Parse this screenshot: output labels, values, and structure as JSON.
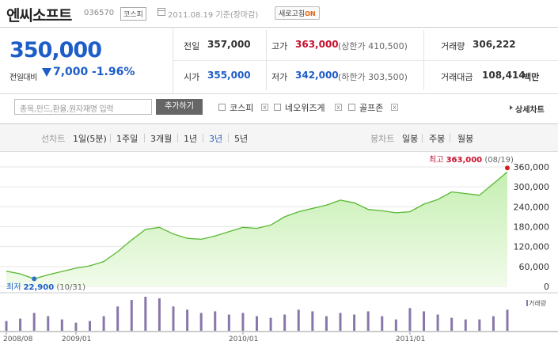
{
  "header": {
    "stock_name": "엔씨소프트",
    "stock_code": "036570",
    "market_badge": "코스피",
    "date_text": "2011.08.19 기준(장마감)",
    "refresh_label": "새로고침",
    "refresh_state": "ON"
  },
  "summary": {
    "price": "350,000",
    "change_label": "전일대비",
    "change_value": "7,000",
    "change_pct": "-1.96%",
    "prev_close_label": "전일",
    "prev_close": "357,000",
    "high_label": "고가",
    "high": "363,000",
    "upper_limit": "(상한가 410,500)",
    "volume_label": "거래량",
    "volume": "306,222",
    "open_label": "시가",
    "open": "355,000",
    "low_label": "저가",
    "low": "342,000",
    "lower_limit": "(하한가 303,500)",
    "amount_label": "거래대금",
    "amount": "108,414",
    "amount_unit": "백만"
  },
  "search": {
    "placeholder": "종목,펀드,환율,원자재명 입력",
    "add_button": "추가하기",
    "compare": [
      {
        "label": "코스피"
      },
      {
        "label": "네오위즈게"
      },
      {
        "label": "골프존"
      }
    ],
    "detail_link": "상세차트"
  },
  "tabs": {
    "line_label": "선차트",
    "line_options": [
      "1일(5분)",
      "1주일",
      "3개월",
      "1년",
      "3년",
      "5년"
    ],
    "selected": "3년",
    "candle_label": "봉차트",
    "candle_options": [
      "일봉",
      "주봉",
      "월봉"
    ]
  },
  "colors": {
    "accent_blue": "#1d5dc8",
    "up_red": "#c8102e",
    "line_green": "#58b832",
    "volume_bar": "#8877aa"
  },
  "chart_data": {
    "type": "area",
    "ylim": [
      0,
      360000
    ],
    "yticks": [
      "360,000",
      "300,000",
      "240,000",
      "180,000",
      "120,000",
      "60,000",
      "0"
    ],
    "ytick_values": [
      360000,
      300000,
      240000,
      180000,
      120000,
      60000,
      0
    ],
    "xticks": [
      "2008/08",
      "2009/01",
      "2010/01",
      "2011/01"
    ],
    "high_label": "최고",
    "high_value": "363,000",
    "high_date": "(08/19)",
    "low_label": "최저",
    "low_value": "22,900",
    "low_date": "(10/31)",
    "volume_label": "거래량",
    "x": [
      "2008/08",
      "2008/09",
      "2008/10",
      "2008/11",
      "2008/12",
      "2009/01",
      "2009/02",
      "2009/03",
      "2009/04",
      "2009/05",
      "2009/06",
      "2009/07",
      "2009/08",
      "2009/09",
      "2009/10",
      "2009/11",
      "2009/12",
      "2010/01",
      "2010/02",
      "2010/03",
      "2010/04",
      "2010/05",
      "2010/06",
      "2010/07",
      "2010/08",
      "2010/09",
      "2010/10",
      "2010/11",
      "2010/12",
      "2011/01",
      "2011/02",
      "2011/03",
      "2011/04",
      "2011/05",
      "2011/06",
      "2011/07",
      "2011/08"
    ],
    "series": [
      {
        "values": [
          46000,
          38000,
          22900,
          35000,
          45000,
          55000,
          62000,
          75000,
          105000,
          140000,
          172000,
          178000,
          158000,
          145000,
          142000,
          152000,
          165000,
          178000,
          175000,
          185000,
          210000,
          225000,
          235000,
          245000,
          260000,
          252000,
          232000,
          228000,
          222000,
          225000,
          248000,
          262000,
          285000,
          280000,
          275000,
          310000,
          345000
        ]
      }
    ],
    "volume_values": [
      12,
      15,
      22,
      18,
      14,
      10,
      12,
      18,
      30,
      38,
      42,
      40,
      30,
      26,
      22,
      24,
      20,
      22,
      18,
      16,
      20,
      26,
      24,
      18,
      22,
      20,
      24,
      18,
      14,
      28,
      24,
      20,
      16,
      14,
      14,
      18,
      26
    ]
  }
}
